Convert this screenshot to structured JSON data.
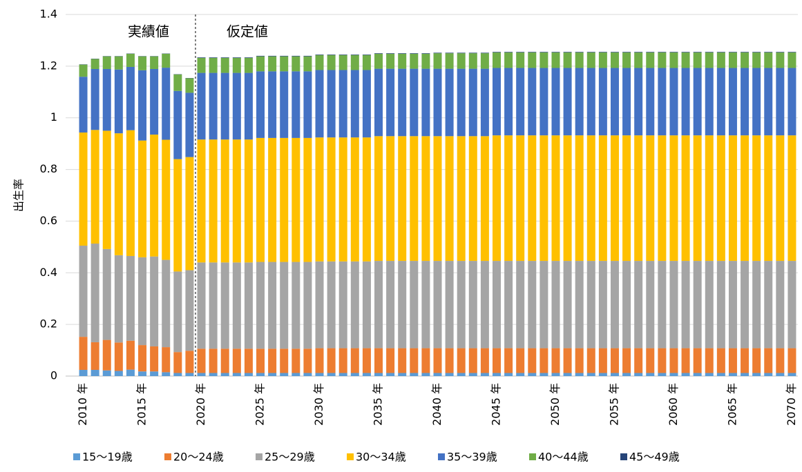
{
  "chart_data": {
    "type": "bar",
    "stacked": true,
    "y_label": "出生率",
    "annotations": [
      "実績値",
      "仮定値"
    ],
    "categories": [
      "2010 年",
      null,
      null,
      null,
      null,
      "2015 年",
      null,
      null,
      null,
      null,
      "2020 年",
      null,
      null,
      null,
      null,
      "2025 年",
      null,
      null,
      null,
      null,
      "2030 年",
      null,
      null,
      null,
      null,
      "2035 年",
      null,
      null,
      null,
      null,
      "2040 年",
      null,
      null,
      null,
      null,
      "2045 年",
      null,
      null,
      null,
      null,
      "2050 年",
      null,
      null,
      null,
      null,
      "2055 年",
      null,
      null,
      null,
      null,
      "2060 年",
      null,
      null,
      null,
      null,
      "2065 年",
      null,
      null,
      null,
      null,
      "2070 年"
    ],
    "ylim": [
      0,
      1.4
    ],
    "yticks": [
      0,
      0.2,
      0.4,
      0.6,
      0.8,
      1,
      1.2,
      1.4
    ],
    "grid": true,
    "legend": "bottom",
    "series": [
      {
        "name": "15〜19歳",
        "color": "#5b9bd5",
        "values": [
          0.024,
          0.024,
          0.022,
          0.02,
          0.025,
          0.018,
          0.018,
          0.015,
          0.012,
          0.012,
          0.012,
          0.012,
          0.012,
          0.012,
          0.012,
          0.012,
          0.012,
          0.012,
          0.012,
          0.012,
          0.012,
          0.012,
          0.012,
          0.012,
          0.012,
          0.012,
          0.012,
          0.012,
          0.012,
          0.012,
          0.012,
          0.012,
          0.012,
          0.012,
          0.012,
          0.012,
          0.012,
          0.012,
          0.012,
          0.012,
          0.012,
          0.012,
          0.012,
          0.012,
          0.012,
          0.012,
          0.012,
          0.012,
          0.012,
          0.012,
          0.012,
          0.012,
          0.012,
          0.012,
          0.012,
          0.012,
          0.012,
          0.012,
          0.012,
          0.012,
          0.012
        ]
      },
      {
        "name": "20〜24歳",
        "color": "#ed7d31",
        "values": [
          0.128,
          0.107,
          0.118,
          0.11,
          0.112,
          0.102,
          0.097,
          0.097,
          0.081,
          0.086,
          0.094,
          0.094,
          0.094,
          0.094,
          0.094,
          0.094,
          0.094,
          0.094,
          0.094,
          0.094,
          0.096,
          0.096,
          0.096,
          0.096,
          0.096,
          0.096,
          0.096,
          0.096,
          0.096,
          0.096,
          0.096,
          0.096,
          0.096,
          0.096,
          0.096,
          0.096,
          0.096,
          0.096,
          0.096,
          0.096,
          0.096,
          0.096,
          0.096,
          0.096,
          0.096,
          0.096,
          0.096,
          0.096,
          0.096,
          0.096,
          0.096,
          0.096,
          0.096,
          0.096,
          0.096,
          0.096,
          0.096,
          0.096,
          0.096,
          0.096,
          0.096
        ]
      },
      {
        "name": "25〜29歳",
        "color": "#a5a5a5",
        "values": [
          0.353,
          0.382,
          0.352,
          0.338,
          0.328,
          0.34,
          0.348,
          0.338,
          0.312,
          0.312,
          0.334,
          0.334,
          0.334,
          0.334,
          0.334,
          0.336,
          0.336,
          0.336,
          0.336,
          0.336,
          0.336,
          0.336,
          0.336,
          0.336,
          0.336,
          0.338,
          0.338,
          0.338,
          0.338,
          0.338,
          0.338,
          0.338,
          0.338,
          0.338,
          0.338,
          0.338,
          0.338,
          0.338,
          0.338,
          0.338,
          0.338,
          0.338,
          0.338,
          0.338,
          0.338,
          0.338,
          0.338,
          0.338,
          0.338,
          0.338,
          0.338,
          0.338,
          0.338,
          0.338,
          0.338,
          0.338,
          0.338,
          0.338,
          0.338,
          0.338,
          0.338
        ]
      },
      {
        "name": "30〜34歳",
        "color": "#ffc000",
        "values": [
          0.438,
          0.44,
          0.458,
          0.472,
          0.487,
          0.452,
          0.472,
          0.465,
          0.435,
          0.438,
          0.476,
          0.476,
          0.476,
          0.476,
          0.476,
          0.48,
          0.48,
          0.48,
          0.48,
          0.48,
          0.48,
          0.48,
          0.48,
          0.48,
          0.48,
          0.483,
          0.483,
          0.483,
          0.483,
          0.483,
          0.483,
          0.483,
          0.483,
          0.483,
          0.483,
          0.486,
          0.486,
          0.486,
          0.486,
          0.486,
          0.486,
          0.486,
          0.486,
          0.486,
          0.486,
          0.486,
          0.486,
          0.486,
          0.486,
          0.486,
          0.486,
          0.486,
          0.486,
          0.486,
          0.486,
          0.486,
          0.486,
          0.486,
          0.486,
          0.486,
          0.486
        ]
      },
      {
        "name": "35〜39歳",
        "color": "#4472c4",
        "values": [
          0.216,
          0.236,
          0.239,
          0.247,
          0.245,
          0.272,
          0.254,
          0.279,
          0.264,
          0.249,
          0.258,
          0.258,
          0.258,
          0.258,
          0.258,
          0.258,
          0.258,
          0.258,
          0.258,
          0.258,
          0.261,
          0.261,
          0.261,
          0.261,
          0.261,
          0.261,
          0.261,
          0.261,
          0.261,
          0.261,
          0.261,
          0.261,
          0.261,
          0.261,
          0.261,
          0.261,
          0.261,
          0.261,
          0.261,
          0.261,
          0.261,
          0.261,
          0.261,
          0.261,
          0.261,
          0.261,
          0.261,
          0.261,
          0.261,
          0.261,
          0.261,
          0.261,
          0.261,
          0.261,
          0.261,
          0.261,
          0.261,
          0.261,
          0.261,
          0.261,
          0.261
        ]
      },
      {
        "name": "40〜44歳",
        "color": "#70ad47",
        "values": [
          0.047,
          0.039,
          0.049,
          0.051,
          0.051,
          0.054,
          0.049,
          0.054,
          0.064,
          0.056,
          0.058,
          0.058,
          0.058,
          0.058,
          0.058,
          0.058,
          0.058,
          0.058,
          0.058,
          0.058,
          0.058,
          0.058,
          0.058,
          0.058,
          0.058,
          0.058,
          0.058,
          0.058,
          0.058,
          0.058,
          0.06,
          0.06,
          0.06,
          0.06,
          0.06,
          0.06,
          0.06,
          0.06,
          0.06,
          0.06,
          0.06,
          0.06,
          0.06,
          0.06,
          0.06,
          0.06,
          0.06,
          0.06,
          0.06,
          0.06,
          0.06,
          0.06,
          0.06,
          0.06,
          0.06,
          0.06,
          0.06,
          0.06,
          0.06,
          0.06,
          0.06
        ]
      },
      {
        "name": "45〜49歳",
        "color": "#264478",
        "values": [
          0.001,
          0.001,
          0.001,
          0.001,
          0.001,
          0.001,
          0.001,
          0.001,
          0.001,
          0.001,
          0.002,
          0.002,
          0.002,
          0.002,
          0.002,
          0.002,
          0.002,
          0.002,
          0.002,
          0.002,
          0.002,
          0.002,
          0.002,
          0.002,
          0.002,
          0.002,
          0.002,
          0.002,
          0.002,
          0.002,
          0.002,
          0.002,
          0.002,
          0.002,
          0.002,
          0.002,
          0.002,
          0.002,
          0.002,
          0.002,
          0.002,
          0.002,
          0.002,
          0.002,
          0.002,
          0.002,
          0.002,
          0.002,
          0.002,
          0.002,
          0.002,
          0.002,
          0.002,
          0.002,
          0.002,
          0.002,
          0.002,
          0.002,
          0.002,
          0.002,
          0.002
        ]
      }
    ]
  }
}
